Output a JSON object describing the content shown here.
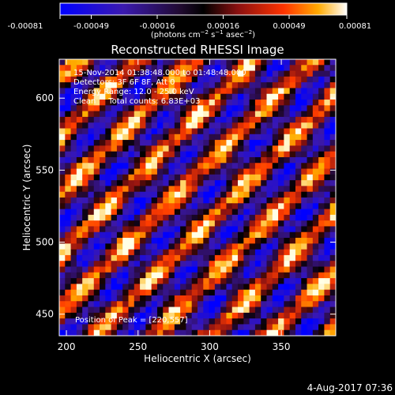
{
  "chart_data": {
    "type": "heatmap",
    "title": "Reconstructed RHESSI Image",
    "xlabel": "Heliocentric X (arcsec)",
    "ylabel": "Heliocentric Y (arcsec)",
    "xlim": [
      195,
      388
    ],
    "ylim": [
      435,
      627
    ],
    "x_ticks": [
      200,
      250,
      300,
      350
    ],
    "y_ticks": [
      450,
      500,
      550,
      600
    ],
    "colorbar": {
      "ticks": [
        "-0.00081",
        "-0.00049",
        "-0.00016",
        "0.00016",
        "0.00049",
        "0.00081"
      ],
      "range": [
        -0.00081,
        0.00081
      ]
    },
    "annotations": [
      "15-Nov-2014 01:38:48.000 to 01:48:48.000",
      "Detectors: 3F 6F 8F, Att 0",
      "Energy Range: 12.0 - 25.0 keV",
      "Clean     Total counts: 6.83E+03"
    ],
    "peak_label": "Position of Peak = [220,557]",
    "peak": [
      220,
      557
    ],
    "timestamp": "4-Aug-2017 07:36",
    "stripe_pattern": "diagonal fringes, upper-left to lower-right"
  }
}
